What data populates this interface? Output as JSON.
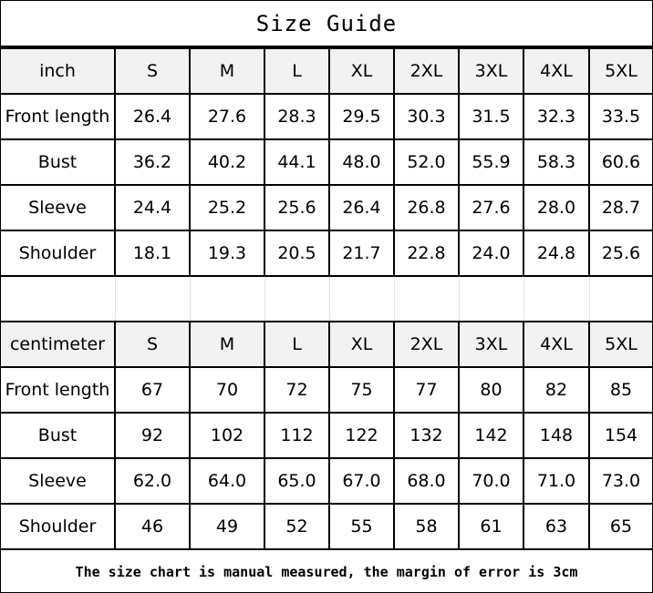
{
  "title": "Size Guide",
  "sizes": [
    "S",
    "M",
    "L",
    "XL",
    "2XL",
    "3XL",
    "4XL",
    "5XL"
  ],
  "inch": {
    "unit": "inch",
    "rows": [
      {
        "label": "Front length",
        "values": [
          "26.4",
          "27.6",
          "28.3",
          "29.5",
          "30.3",
          "31.5",
          "32.3",
          "33.5"
        ]
      },
      {
        "label": "Bust",
        "values": [
          "36.2",
          "40.2",
          "44.1",
          "48.0",
          "52.0",
          "55.9",
          "58.3",
          "60.6"
        ]
      },
      {
        "label": "Sleeve",
        "values": [
          "24.4",
          "25.2",
          "25.6",
          "26.4",
          "26.8",
          "27.6",
          "28.0",
          "28.7"
        ]
      },
      {
        "label": "Shoulder",
        "values": [
          "18.1",
          "19.3",
          "20.5",
          "21.7",
          "22.8",
          "24.0",
          "24.8",
          "25.6"
        ]
      }
    ]
  },
  "cm": {
    "unit": "centimeter",
    "rows": [
      {
        "label": "Front length",
        "values": [
          "67",
          "70",
          "72",
          "75",
          "77",
          "80",
          "82",
          "85"
        ]
      },
      {
        "label": "Bust",
        "values": [
          "92",
          "102",
          "112",
          "122",
          "132",
          "142",
          "148",
          "154"
        ]
      },
      {
        "label": "Sleeve",
        "values": [
          "62.0",
          "64.0",
          "65.0",
          "67.0",
          "68.0",
          "70.0",
          "71.0",
          "73.0"
        ]
      },
      {
        "label": "Shoulder",
        "values": [
          "46",
          "49",
          "52",
          "55",
          "58",
          "61",
          "63",
          "65"
        ]
      }
    ]
  },
  "footer": "The size chart is manual measured, the margin of error is 3cm"
}
